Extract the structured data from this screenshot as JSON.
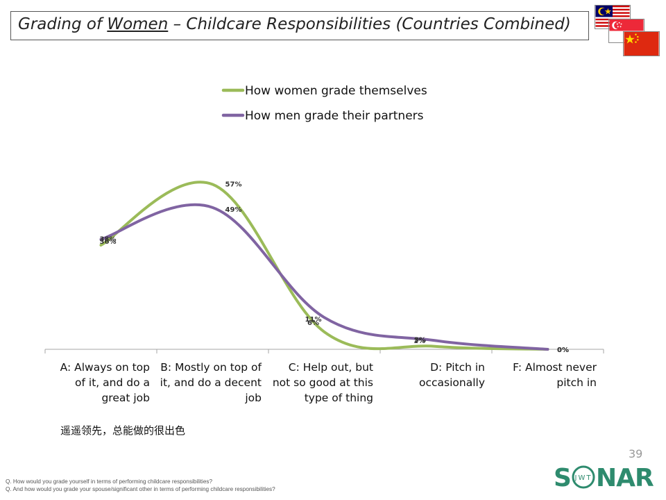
{
  "title": {
    "prefix": "Grading of ",
    "subject": "Women",
    "suffix": " – Childcare Responsibilities (Countries Combined)"
  },
  "flags": [
    "malaysia-flag",
    "singapore-flag",
    "china-flag"
  ],
  "colors": {
    "women": "#9bbb59",
    "men": "#8064a2",
    "axis": "#a6a6a6",
    "text": "#111111"
  },
  "chart_data": {
    "type": "line",
    "smooth": true,
    "categories": [
      [
        "A: Always on top",
        "of it, and do a",
        "great job"
      ],
      [
        "B: Mostly on top of",
        "it, and do a decent",
        "job"
      ],
      [
        "C: Help out, but",
        "not so good at this",
        "type of thing"
      ],
      [
        "D: Pitch in",
        "occasionally"
      ],
      [
        "F: Almost never",
        "pitch in"
      ]
    ],
    "series": [
      {
        "name": "How women grade themselves",
        "color": "#9bbb59",
        "values": [
          36,
          57,
          6,
          1,
          0
        ],
        "labels": [
          "36%",
          "57%",
          "6%",
          "1%",
          "0%"
        ]
      },
      {
        "name": "How men grade their partners",
        "color": "#8064a2",
        "values": [
          38,
          49,
          11,
          3,
          0
        ],
        "labels": [
          "38%",
          "49%",
          "11%",
          "3%",
          "0%"
        ]
      }
    ],
    "ylim": [
      0,
      60
    ],
    "legend": "top-center"
  },
  "note_chinese": "遥遥领先，总能做的很出色",
  "footnote": [
    "Q. How would you grade yourself in terms of performing childcare responsibilities?",
    "Q. And how would you grade your spouse/significant other in terms of performing childcare responsibilities?"
  ],
  "page_number": "39",
  "logo": {
    "brand": "SONAR",
    "sub": "JWT"
  }
}
